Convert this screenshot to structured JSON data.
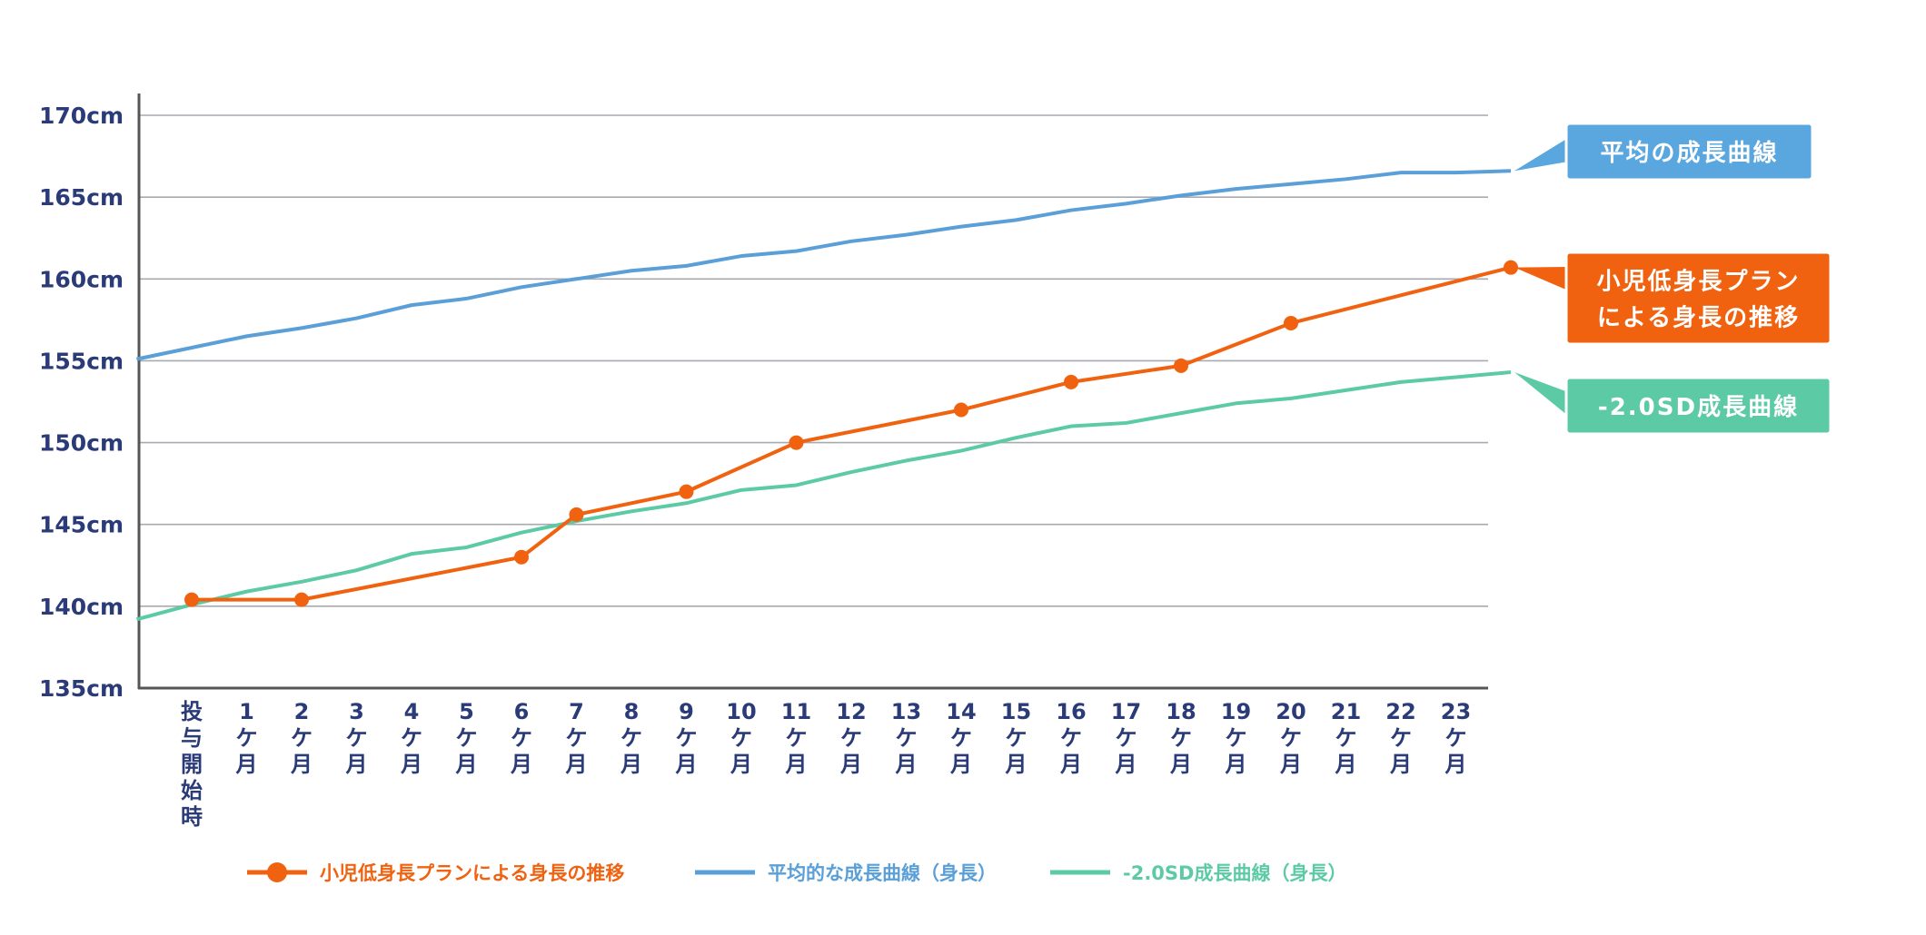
{
  "chart_data": {
    "type": "line",
    "y_ticks": [
      "135cm",
      "140cm",
      "145cm",
      "150cm",
      "155cm",
      "160cm",
      "165cm",
      "170cm"
    ],
    "ylim": [
      135,
      170
    ],
    "x_labels": [
      [
        "投",
        "与",
        "開",
        "始",
        "時"
      ],
      [
        "1",
        "ケ",
        "月"
      ],
      [
        "2",
        "ケ",
        "月"
      ],
      [
        "3",
        "ケ",
        "月"
      ],
      [
        "4",
        "ケ",
        "月"
      ],
      [
        "5",
        "ケ",
        "月"
      ],
      [
        "6",
        "ケ",
        "月"
      ],
      [
        "7",
        "ケ",
        "月"
      ],
      [
        "8",
        "ケ",
        "月"
      ],
      [
        "9",
        "ケ",
        "月"
      ],
      [
        "10",
        "ケ",
        "月"
      ],
      [
        "11",
        "ケ",
        "月"
      ],
      [
        "12",
        "ケ",
        "月"
      ],
      [
        "13",
        "ケ",
        "月"
      ],
      [
        "14",
        "ケ",
        "月"
      ],
      [
        "15",
        "ケ",
        "月"
      ],
      [
        "16",
        "ケ",
        "月"
      ],
      [
        "17",
        "ケ",
        "月"
      ],
      [
        "18",
        "ケ",
        "月"
      ],
      [
        "19",
        "ケ",
        "月"
      ],
      [
        "20",
        "ケ",
        "月"
      ],
      [
        "21",
        "ケ",
        "月"
      ],
      [
        "22",
        "ケ",
        "月"
      ],
      [
        "23",
        "ケ",
        "月"
      ]
    ],
    "series": [
      {
        "name": "平均的な成長曲線（身長）",
        "color": "#5a9fd8",
        "x": [
          -1,
          0,
          1,
          2,
          3,
          4,
          5,
          6,
          7,
          8,
          9,
          10,
          11,
          12,
          13,
          14,
          15,
          16,
          17,
          18,
          19,
          20,
          21,
          22,
          23,
          24
        ],
        "values": [
          155.1,
          155.8,
          156.5,
          157.0,
          157.6,
          158.4,
          158.8,
          159.5,
          160.0,
          160.5,
          160.8,
          161.4,
          161.7,
          162.3,
          162.7,
          163.2,
          163.6,
          164.2,
          164.6,
          165.1,
          165.5,
          165.8,
          166.1,
          166.5,
          166.5,
          166.6
        ],
        "markers": false
      },
      {
        "name": "小児低身長プランによる身長の推移",
        "color": "#f0620f",
        "x": [
          0,
          2,
          6,
          7,
          9,
          11,
          14,
          16,
          18,
          20,
          24
        ],
        "values": [
          140.4,
          140.4,
          143.0,
          145.6,
          147.0,
          150.0,
          152.0,
          153.7,
          154.7,
          157.3,
          160.7
        ],
        "markers": true
      },
      {
        "name": "-2.0SD成長曲線（身長）",
        "color": "#5ccaa5",
        "x": [
          -1,
          0,
          1,
          2,
          3,
          4,
          5,
          6,
          7,
          8,
          9,
          10,
          11,
          12,
          13,
          14,
          15,
          16,
          17,
          18,
          19,
          20,
          21,
          22,
          23,
          24
        ],
        "values": [
          139.2,
          140.1,
          140.9,
          141.5,
          142.2,
          143.2,
          143.6,
          144.5,
          145.2,
          145.8,
          146.3,
          147.1,
          147.4,
          148.2,
          148.9,
          149.5,
          150.3,
          151.0,
          151.2,
          151.8,
          152.4,
          152.7,
          153.2,
          153.7,
          154.0,
          154.3
        ],
        "markers": false
      }
    ],
    "callouts": [
      {
        "lines": [
          "平均の成長曲線"
        ],
        "color": "#5aa6df",
        "value": 166.6
      },
      {
        "lines": [
          "小児低身長プラン",
          "による身長の推移"
        ],
        "color": "#f0620f",
        "value": 160.7
      },
      {
        "lines": [
          "-2.0SD成長曲線"
        ],
        "color": "#5ccaa5",
        "value": 154.3
      }
    ],
    "legend": [
      {
        "label": "小児低身長プランによる身長の推移",
        "color": "#f0620f",
        "marker": true
      },
      {
        "label": "平均的な成長曲線（身長）",
        "color": "#5a9fd8",
        "marker": false
      },
      {
        "label": "-2.0SD成長曲線（身長）",
        "color": "#5ccaa5",
        "marker": false
      }
    ],
    "grid": true,
    "legend_position": "bottom"
  }
}
